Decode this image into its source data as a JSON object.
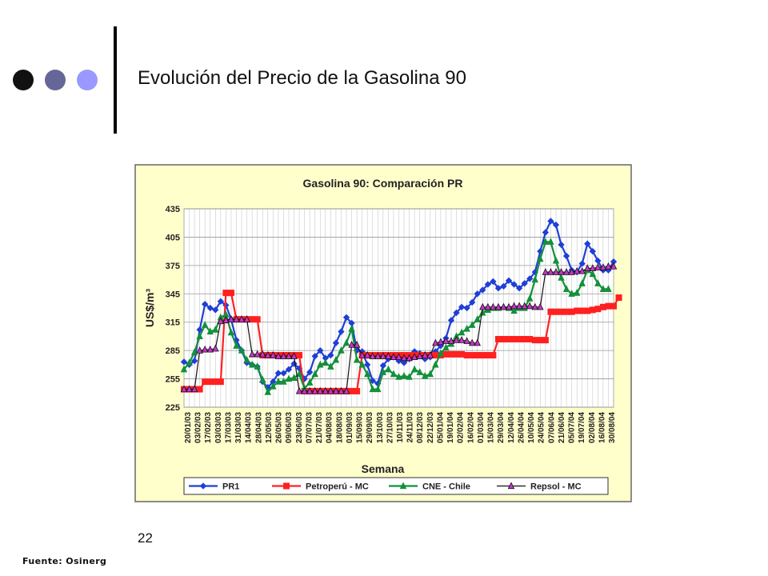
{
  "slide": {
    "title": "Evolución del Precio de la Gasolina 90",
    "page_number": "22",
    "source": "Fuente: Osinerg",
    "bullet_colors": [
      "#111111",
      "#666699",
      "#9999ff"
    ]
  },
  "chart_data": {
    "type": "line",
    "title": "Gasolina 90: Comparación PR",
    "xlabel": "Semana",
    "ylabel": "US$/m³",
    "ylim": [
      225,
      435
    ],
    "yticks": [
      225,
      255,
      285,
      315,
      345,
      375,
      405,
      435
    ],
    "grid": true,
    "legend_position": "bottom",
    "background": "#ffffcc",
    "x_tick_labels": [
      "20/01/03",
      "03/02/03",
      "17/02/03",
      "03/03/03",
      "17/03/03",
      "31/03/03",
      "14/04/03",
      "28/04/03",
      "12/05/03",
      "26/05/03",
      "09/06/03",
      "23/06/03",
      "07/07/03",
      "21/07/03",
      "04/08/03",
      "18/08/03",
      "01/09/03",
      "15/09/03",
      "29/09/03",
      "13/10/03",
      "27/10/03",
      "10/11/03",
      "24/11/03",
      "08/12/03",
      "22/12/03",
      "05/01/04",
      "19/01/04",
      "02/02/04",
      "16/02/04",
      "01/03/04",
      "15/03/04",
      "29/03/04",
      "12/04/04",
      "26/04/04",
      "10/05/04",
      "24/05/04",
      "07/06/04",
      "21/06/04",
      "05/07/04",
      "19/07/04",
      "02/08/04",
      "16/08/04",
      "30/08/04"
    ],
    "series": [
      {
        "name": "PR1",
        "color": "#1f3fd6",
        "marker": "diamond",
        "values": [
          273,
          270,
          274,
          307,
          334,
          330,
          328,
          337,
          333,
          318,
          296,
          285,
          272,
          270,
          268,
          252,
          246,
          252,
          261,
          261,
          265,
          271,
          266,
          255,
          262,
          279,
          285,
          277,
          280,
          293,
          305,
          320,
          314,
          285,
          284,
          270,
          253,
          250,
          269,
          276,
          278,
          274,
          272,
          276,
          284,
          282,
          276,
          278,
          284,
          290,
          298,
          317,
          325,
          331,
          330,
          336,
          345,
          349,
          355,
          358,
          351,
          353,
          359,
          355,
          351,
          356,
          361,
          368,
          390,
          410,
          422,
          418,
          397,
          385,
          370,
          368,
          377,
          398,
          390,
          380,
          370,
          370,
          379
        ]
      },
      {
        "name": "Petroperú - MC",
        "color": "#ff2020",
        "marker": "square",
        "values": [
          244,
          244,
          244,
          244,
          252,
          252,
          252,
          252,
          346,
          346,
          318,
          318,
          318,
          318,
          318,
          280,
          280,
          280,
          280,
          280,
          280,
          280,
          280,
          242,
          242,
          242,
          242,
          242,
          242,
          242,
          242,
          242,
          242,
          242,
          280,
          280,
          280,
          280,
          280,
          280,
          280,
          280,
          280,
          280,
          280,
          280,
          280,
          280,
          280,
          280,
          281,
          281,
          281,
          281,
          280,
          280,
          280,
          280,
          280,
          280,
          297,
          297,
          297,
          297,
          297,
          297,
          297,
          296,
          296,
          296,
          326,
          326,
          326,
          326,
          326,
          327,
          327,
          327,
          328,
          329,
          331,
          332,
          332,
          341
        ]
      },
      {
        "name": "CNE - Chile",
        "color": "#12903a",
        "marker": "triangle",
        "values": [
          265,
          272,
          283,
          300,
          312,
          305,
          307,
          320,
          323,
          304,
          290,
          285,
          275,
          270,
          268,
          254,
          241,
          247,
          252,
          252,
          255,
          256,
          260,
          245,
          251,
          260,
          270,
          272,
          268,
          275,
          285,
          293,
          308,
          275,
          270,
          260,
          244,
          244,
          262,
          265,
          260,
          257,
          258,
          257,
          265,
          262,
          258,
          260,
          270,
          282,
          288,
          292,
          300,
          304,
          308,
          312,
          318,
          325,
          328,
          330,
          330,
          331,
          330,
          327,
          330,
          330,
          340,
          360,
          382,
          400,
          400,
          380,
          362,
          350,
          345,
          346,
          356,
          370,
          366,
          356,
          350,
          350
        ]
      },
      {
        "name": "Repsol - MC",
        "color": "#111111",
        "marker": "triangle",
        "marker_fill": "#cc33cc",
        "values": [
          244,
          244,
          244,
          285,
          286,
          286,
          287,
          316,
          317,
          318,
          318,
          318,
          318,
          281,
          281,
          281,
          280,
          280,
          279,
          279,
          279,
          279,
          242,
          242,
          242,
          242,
          242,
          242,
          242,
          242,
          242,
          242,
          291,
          291,
          280,
          280,
          279,
          279,
          279,
          279,
          278,
          278,
          277,
          277,
          278,
          279,
          280,
          280,
          293,
          294,
          295,
          295,
          296,
          296,
          295,
          293,
          293,
          331,
          331,
          331,
          331,
          331,
          331,
          332,
          332,
          332,
          332,
          331,
          331,
          368,
          368,
          368,
          368,
          368,
          368,
          369,
          369,
          372,
          372,
          373,
          373,
          374,
          374
        ]
      }
    ]
  }
}
